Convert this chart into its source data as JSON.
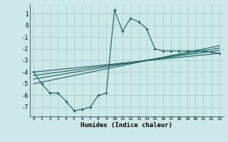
{
  "title": "",
  "xlabel": "Humidex (Indice chaleur)",
  "background_color": "#cce8e8",
  "grid_color": "#aacccc",
  "line_color": "#1a6060",
  "xlim": [
    -0.5,
    23.5
  ],
  "ylim": [
    -7.8,
    1.8
  ],
  "xticks": [
    0,
    1,
    2,
    3,
    4,
    5,
    6,
    7,
    8,
    9,
    10,
    11,
    12,
    13,
    14,
    15,
    16,
    17,
    18,
    19,
    20,
    21,
    22,
    23
  ],
  "yticks": [
    1,
    0,
    -1,
    -2,
    -3,
    -4,
    -5,
    -6,
    -7
  ],
  "curve1_x": [
    0,
    1,
    2,
    3,
    4,
    5,
    6,
    7,
    8,
    9,
    10,
    11,
    12,
    13,
    14,
    15,
    16,
    17,
    18,
    19,
    20,
    21,
    22,
    23
  ],
  "curve1_y": [
    -4.0,
    -5.0,
    -5.8,
    -5.8,
    -6.5,
    -7.3,
    -7.2,
    -7.0,
    -6.0,
    -5.8,
    1.3,
    -0.5,
    0.6,
    0.3,
    -0.3,
    -2.0,
    -2.2,
    -2.2,
    -2.2,
    -2.2,
    -2.2,
    -2.2,
    -2.3,
    -2.4
  ],
  "curve2_x": [
    0,
    23
  ],
  "curve2_y": [
    -4.0,
    -2.4
  ],
  "curve3_x": [
    0,
    23
  ],
  "curve3_y": [
    -4.3,
    -2.15
  ],
  "curve4_x": [
    0,
    23
  ],
  "curve4_y": [
    -4.6,
    -1.95
  ],
  "curve5_x": [
    0,
    23
  ],
  "curve5_y": [
    -5.0,
    -1.75
  ]
}
